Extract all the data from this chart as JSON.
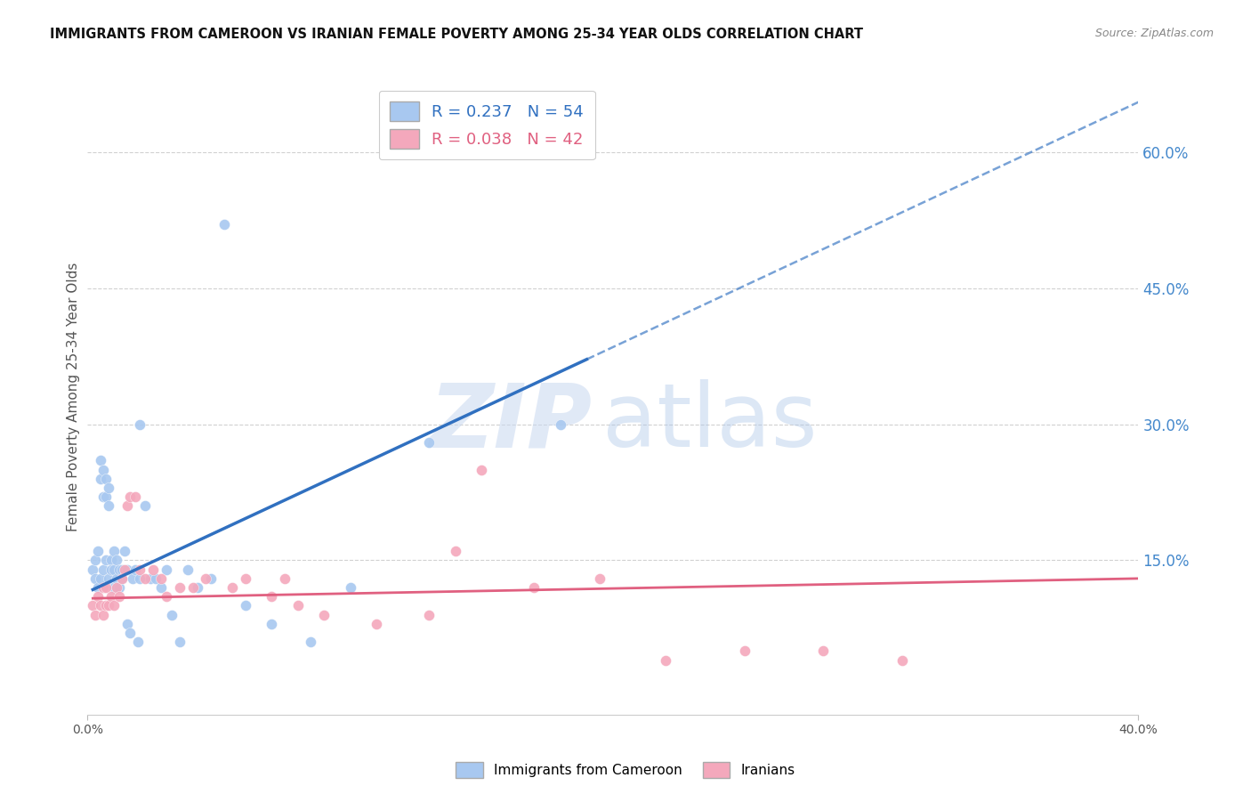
{
  "title": "IMMIGRANTS FROM CAMEROON VS IRANIAN FEMALE POVERTY AMONG 25-34 YEAR OLDS CORRELATION CHART",
  "source": "Source: ZipAtlas.com",
  "ylabel": "Female Poverty Among 25-34 Year Olds",
  "right_yticks": [
    "60.0%",
    "45.0%",
    "30.0%",
    "15.0%"
  ],
  "right_ytick_vals": [
    0.6,
    0.45,
    0.3,
    0.15
  ],
  "xlim": [
    0.0,
    0.4
  ],
  "ylim": [
    -0.02,
    0.68
  ],
  "legend1_R": "0.237",
  "legend1_N": "54",
  "legend2_R": "0.038",
  "legend2_N": "42",
  "blue_color": "#A8C8F0",
  "pink_color": "#F4A8BC",
  "line_blue": "#3070C0",
  "line_pink": "#E06080",
  "blue_scatter_x": [
    0.002,
    0.003,
    0.003,
    0.004,
    0.004,
    0.005,
    0.005,
    0.005,
    0.006,
    0.006,
    0.006,
    0.007,
    0.007,
    0.007,
    0.008,
    0.008,
    0.008,
    0.009,
    0.009,
    0.01,
    0.01,
    0.01,
    0.011,
    0.011,
    0.012,
    0.012,
    0.013,
    0.013,
    0.014,
    0.015,
    0.015,
    0.016,
    0.017,
    0.018,
    0.019,
    0.02,
    0.022,
    0.024,
    0.026,
    0.028,
    0.03,
    0.032,
    0.035,
    0.038,
    0.042,
    0.047,
    0.052,
    0.06,
    0.07,
    0.085,
    0.1,
    0.13,
    0.18,
    0.02
  ],
  "blue_scatter_y": [
    0.14,
    0.15,
    0.13,
    0.16,
    0.12,
    0.24,
    0.26,
    0.13,
    0.25,
    0.22,
    0.14,
    0.24,
    0.22,
    0.15,
    0.23,
    0.21,
    0.13,
    0.15,
    0.14,
    0.16,
    0.14,
    0.12,
    0.15,
    0.13,
    0.14,
    0.12,
    0.14,
    0.13,
    0.16,
    0.14,
    0.08,
    0.07,
    0.13,
    0.14,
    0.06,
    0.13,
    0.21,
    0.13,
    0.13,
    0.12,
    0.14,
    0.09,
    0.06,
    0.14,
    0.12,
    0.13,
    0.52,
    0.1,
    0.08,
    0.06,
    0.12,
    0.28,
    0.3,
    0.3
  ],
  "pink_scatter_x": [
    0.002,
    0.003,
    0.004,
    0.005,
    0.006,
    0.006,
    0.007,
    0.007,
    0.008,
    0.009,
    0.01,
    0.011,
    0.012,
    0.013,
    0.014,
    0.015,
    0.016,
    0.018,
    0.02,
    0.022,
    0.025,
    0.028,
    0.03,
    0.035,
    0.04,
    0.045,
    0.055,
    0.06,
    0.07,
    0.08,
    0.09,
    0.11,
    0.13,
    0.15,
    0.17,
    0.195,
    0.22,
    0.25,
    0.28,
    0.31,
    0.14,
    0.075
  ],
  "pink_scatter_y": [
    0.1,
    0.09,
    0.11,
    0.1,
    0.12,
    0.09,
    0.1,
    0.12,
    0.1,
    0.11,
    0.1,
    0.12,
    0.11,
    0.13,
    0.14,
    0.21,
    0.22,
    0.22,
    0.14,
    0.13,
    0.14,
    0.13,
    0.11,
    0.12,
    0.12,
    0.13,
    0.12,
    0.13,
    0.11,
    0.1,
    0.09,
    0.08,
    0.09,
    0.25,
    0.12,
    0.13,
    0.04,
    0.05,
    0.05,
    0.04,
    0.16,
    0.13
  ],
  "grid_color": "#CCCCCC",
  "background_color": "#FFFFFF",
  "blue_line_x_start": 0.002,
  "blue_line_x_solid_end": 0.18,
  "blue_line_x_dash_end": 0.4,
  "pink_line_x_start": 0.002,
  "pink_line_x_end": 0.4
}
